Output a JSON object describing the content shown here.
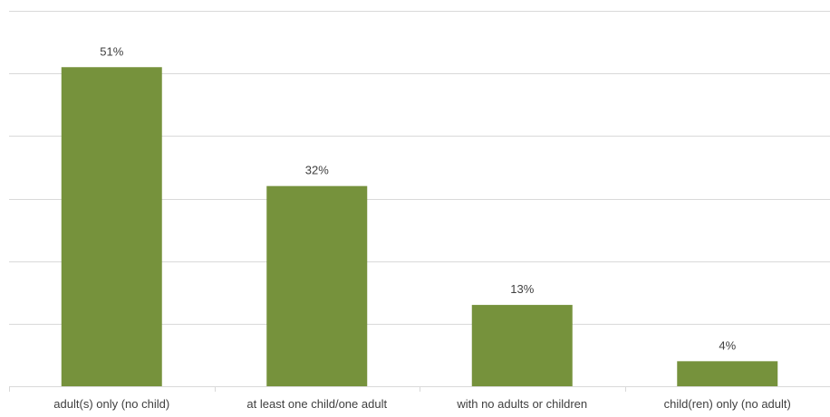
{
  "chart_data": {
    "type": "bar",
    "categories": [
      "adult(s) only (no child)",
      "at least one child/one adult",
      "with no adults or children",
      "child(ren) only (no adult)"
    ],
    "values": [
      51,
      32,
      13,
      4
    ],
    "data_labels": [
      "51%",
      "32%",
      "13%",
      "4%"
    ],
    "title": "",
    "xlabel": "",
    "ylabel": "",
    "ylim": [
      0,
      60
    ],
    "grid": true,
    "bar_color": "#76923c",
    "gridline_color": "#d9d9d9"
  }
}
